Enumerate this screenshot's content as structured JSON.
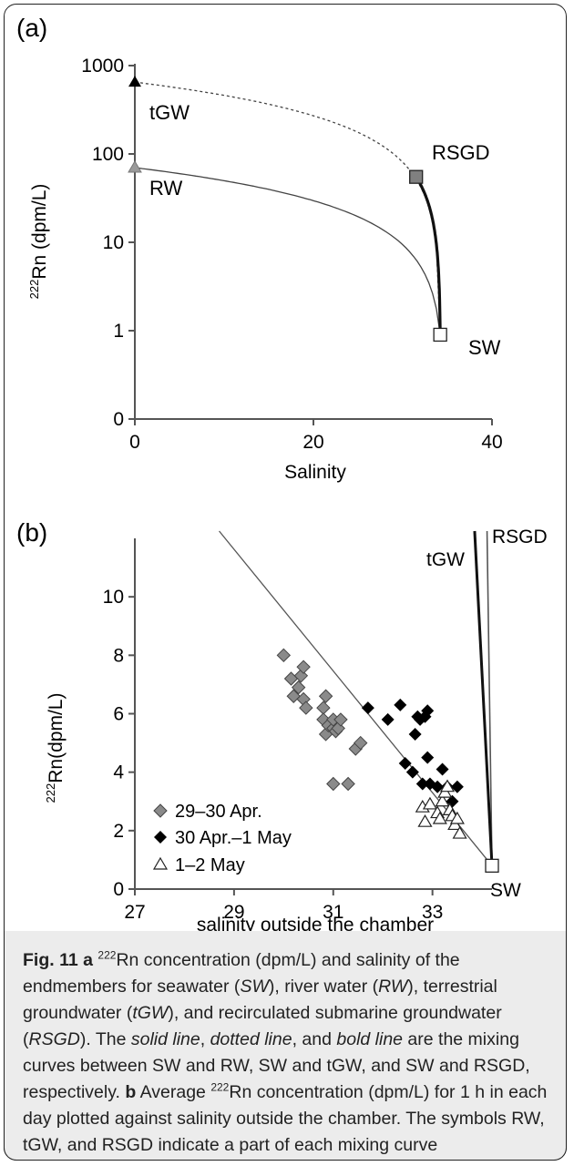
{
  "chart_data": [
    {
      "panel": "(a)",
      "type": "line",
      "xlabel": "Salinity",
      "ylabel": "222Rn (dpm/L)",
      "xlim": [
        0,
        40
      ],
      "x_ticks": [
        "0",
        "20",
        "40"
      ],
      "y_scale": "log",
      "y_ticks": [
        "0",
        "1",
        "10",
        "100",
        "1000"
      ],
      "endmembers": [
        {
          "name": "tGW",
          "salinity": 0,
          "rn": 650,
          "marker": "filled-triangle"
        },
        {
          "name": "RW",
          "salinity": 0,
          "rn": 70,
          "marker": "grey-triangle"
        },
        {
          "name": "RSGD",
          "salinity": 31.5,
          "rn": 55,
          "marker": "grey-square"
        },
        {
          "name": "SW",
          "salinity": 34.2,
          "rn": 0.9,
          "marker": "open-square"
        }
      ],
      "series": [
        {
          "from": "SW",
          "to": "RW",
          "line": "solid"
        },
        {
          "from": "SW",
          "to": "tGW",
          "line": "dotted"
        },
        {
          "from": "SW",
          "to": "RSGD",
          "line": "bold"
        }
      ]
    },
    {
      "panel": "(b)",
      "type": "scatter",
      "xlabel": "salinity outside the chamber",
      "ylabel": "222Rn(dpm/L)",
      "xlim": [
        27,
        34.2
      ],
      "ylim": [
        0,
        12
      ],
      "x_ticks": [
        27,
        29,
        31,
        33
      ],
      "y_ticks": [
        0,
        2,
        4,
        6,
        8,
        10
      ],
      "legend_position": "bottom-left",
      "mixing_lines": [
        {
          "name": "",
          "from": [
            34.2,
            0.8
          ],
          "to": [
            28.7,
            12
          ]
        },
        {
          "name": "tGW",
          "from": [
            34.2,
            0.8
          ],
          "to": [
            34.1,
            12
          ]
        },
        {
          "name": "RSGD",
          "from": [
            34.2,
            0.8
          ],
          "to": [
            33.85,
            12
          ]
        }
      ],
      "sw_point": {
        "name": "SW",
        "x": 34.2,
        "y": 0.8
      },
      "series": [
        {
          "name": "29–30 Apr.",
          "marker": "grey-diamond",
          "points": [
            [
              30.0,
              8.0
            ],
            [
              30.15,
              7.2
            ],
            [
              30.2,
              6.6
            ],
            [
              30.3,
              6.9
            ],
            [
              30.35,
              7.3
            ],
            [
              30.4,
              7.6
            ],
            [
              30.4,
              6.5
            ],
            [
              30.45,
              6.2
            ],
            [
              30.8,
              6.2
            ],
            [
              30.8,
              5.8
            ],
            [
              30.85,
              6.6
            ],
            [
              30.85,
              5.3
            ],
            [
              30.9,
              5.6
            ],
            [
              31.0,
              5.5
            ],
            [
              31.0,
              5.8
            ],
            [
              31.05,
              5.4
            ],
            [
              31.1,
              5.5
            ],
            [
              31.15,
              5.8
            ],
            [
              31.0,
              3.6
            ],
            [
              31.3,
              3.6
            ],
            [
              31.45,
              4.8
            ],
            [
              31.55,
              5.0
            ]
          ]
        },
        {
          "name": "30 Apr.–1 May",
          "marker": "black-diamond",
          "points": [
            [
              31.7,
              6.2
            ],
            [
              32.1,
              5.8
            ],
            [
              32.35,
              6.3
            ],
            [
              32.45,
              4.3
            ],
            [
              32.6,
              4.0
            ],
            [
              32.65,
              5.3
            ],
            [
              32.7,
              5.9
            ],
            [
              32.75,
              5.8
            ],
            [
              32.85,
              5.9
            ],
            [
              32.9,
              6.1
            ],
            [
              32.9,
              4.5
            ],
            [
              32.8,
              3.6
            ],
            [
              32.95,
              3.6
            ],
            [
              33.1,
              3.5
            ],
            [
              33.2,
              4.1
            ],
            [
              33.3,
              3.5
            ],
            [
              33.4,
              3.0
            ],
            [
              33.5,
              3.5
            ]
          ]
        },
        {
          "name": "1–2 May",
          "marker": "open-triangle",
          "points": [
            [
              32.8,
              2.8
            ],
            [
              32.85,
              2.3
            ],
            [
              32.95,
              2.9
            ],
            [
              33.1,
              2.6
            ],
            [
              33.15,
              2.4
            ],
            [
              33.2,
              3.0
            ],
            [
              33.25,
              3.3
            ],
            [
              33.3,
              3.5
            ],
            [
              33.35,
              2.7
            ],
            [
              33.4,
              2.5
            ],
            [
              33.45,
              2.2
            ],
            [
              33.5,
              2.4
            ],
            [
              33.55,
              1.9
            ]
          ]
        }
      ]
    }
  ],
  "caption": {
    "fig_label": "Fig. 11",
    "a_label": "a",
    "b_label": "b",
    "sup": "222",
    "p1": "Rn concentration (dpm/L) and salinity of the endmembers for seawater (",
    "sw": "SW",
    "p2": "), river water (",
    "rw": "RW",
    "p3": "), terrestrial groundwater (",
    "tgw": "tGW",
    "p4": "), and recirculated submarine groundwater (",
    "rsgd": "RSGD",
    "p5": "). The ",
    "solid": "solid line",
    "p6": ", ",
    "dotted": "dotted line",
    "p7": ", and ",
    "bold": "bold line",
    "p8": " are the mixing curves between SW and RW, SW and tGW, and SW and RSGD, respectively. ",
    "p9": " Average ",
    "p10": "Rn concentration (dpm/L) for 1 h in each day plotted against salinity outside the chamber. The symbols RW, tGW, and RSGD indicate a part of each mixing curve"
  }
}
